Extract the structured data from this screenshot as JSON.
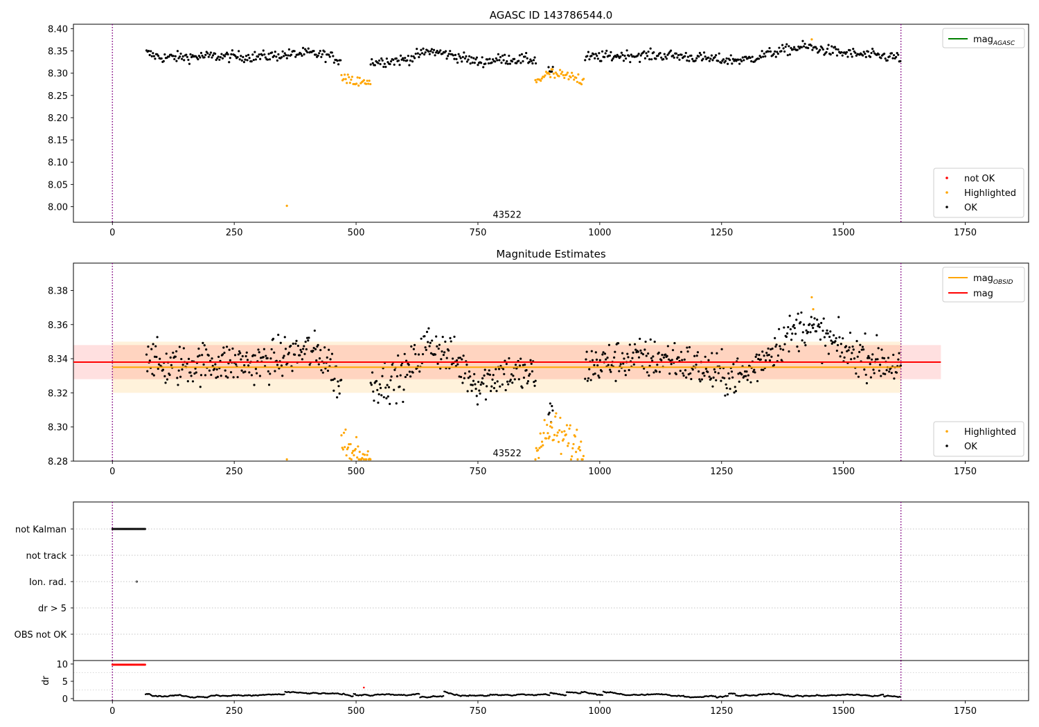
{
  "chart_data": [
    {
      "id": "top",
      "type": "scatter",
      "title": "AGASC ID 143786544.0",
      "xlim": [
        -80,
        1880
      ],
      "ylim": [
        7.965,
        8.41
      ],
      "xticks": [
        "0",
        "250",
        "500",
        "750",
        "1000",
        "1250",
        "1500",
        "1750"
      ],
      "xtick_values": [
        0,
        250,
        500,
        750,
        1000,
        1250,
        1500,
        1750
      ],
      "yticks": [
        "8.00",
        "8.05",
        "8.10",
        "8.15",
        "8.20",
        "8.25",
        "8.30",
        "8.35",
        "8.40"
      ],
      "ytick_values": [
        8.0,
        8.05,
        8.1,
        8.15,
        8.2,
        8.25,
        8.3,
        8.35,
        8.4
      ],
      "vlines": [
        0,
        1618
      ],
      "annotation": {
        "text": "43522",
        "x": 810,
        "y": 7.98
      },
      "hlines": [
        {
          "name": "mag_AGASC",
          "value": null,
          "color": "#008000"
        }
      ],
      "legend_lines": [
        {
          "label": "mag",
          "subscript": "AGASC",
          "color": "#008000"
        }
      ],
      "legend_points": [
        {
          "label": "not OK",
          "color": "#ff0000"
        },
        {
          "label": "Highlighted",
          "color": "#ffa500"
        },
        {
          "label": "OK",
          "color": "#000000"
        }
      ],
      "series": [
        {
          "name": "OK",
          "color": "#000000",
          "x_range": [
            70,
            1618
          ],
          "segments": [
            [
              70,
              470
            ],
            [
              530,
              870
            ],
            [
              895,
              905
            ],
            [
              970,
              1618
            ]
          ],
          "trend": [
            [
              70,
              8.345
            ],
            [
              100,
              8.335
            ],
            [
              200,
              8.338
            ],
            [
              300,
              8.337
            ],
            [
              400,
              8.345
            ],
            [
              440,
              8.34
            ],
            [
              465,
              8.33
            ],
            [
              530,
              8.325
            ],
            [
              600,
              8.33
            ],
            [
              650,
              8.35
            ],
            [
              700,
              8.34
            ],
            [
              750,
              8.325
            ],
            [
              800,
              8.332
            ],
            [
              870,
              8.33
            ],
            [
              900,
              8.305
            ],
            [
              970,
              8.335
            ],
            [
              1050,
              8.34
            ],
            [
              1150,
              8.34
            ],
            [
              1250,
              8.33
            ],
            [
              1300,
              8.33
            ],
            [
              1350,
              8.345
            ],
            [
              1420,
              8.36
            ],
            [
              1500,
              8.345
            ],
            [
              1618,
              8.335
            ]
          ],
          "noise": 0.006
        },
        {
          "name": "Highlighted",
          "color": "#ffa500",
          "segments": [
            [
              470,
              530
            ],
            [
              868,
              968
            ]
          ],
          "trend": [
            [
              470,
              8.285
            ],
            [
              500,
              8.28
            ],
            [
              530,
              8.275
            ],
            [
              868,
              8.285
            ],
            [
              900,
              8.298
            ],
            [
              968,
              8.285
            ]
          ],
          "noise": 0.007,
          "extra_points": [
            [
              358,
              8.002
            ],
            [
              1435,
              8.376
            ]
          ]
        }
      ]
    },
    {
      "id": "middle",
      "type": "scatter",
      "title": "Magnitude Estimates",
      "xlim": [
        -80,
        1880
      ],
      "ylim": [
        8.28,
        8.396
      ],
      "xticks": [
        "0",
        "250",
        "500",
        "750",
        "1000",
        "1250",
        "1500",
        "1750"
      ],
      "xtick_values": [
        0,
        250,
        500,
        750,
        1000,
        1250,
        1500,
        1750
      ],
      "yticks": [
        "8.28",
        "8.30",
        "8.32",
        "8.34",
        "8.36",
        "8.38"
      ],
      "ytick_values": [
        8.28,
        8.3,
        8.32,
        8.34,
        8.36,
        8.38
      ],
      "vlines": [
        0,
        1618
      ],
      "annotation": {
        "text": "43522",
        "x": 810,
        "y": 8.284
      },
      "hlines": [
        {
          "name": "mag_OBSID",
          "value": 8.335,
          "color": "#ffa500",
          "band": [
            8.32,
            8.35
          ],
          "band_x": [
            0,
            1618
          ],
          "band_color": "#ffa500",
          "band_opacity": 0.14
        },
        {
          "name": "mag",
          "value": 8.338,
          "color": "#ff0000",
          "band": [
            8.328,
            8.348
          ],
          "band_x": [
            -80,
            1700
          ],
          "band_color": "#ff0000",
          "band_opacity": 0.12
        }
      ],
      "legend_lines": [
        {
          "label": "mag",
          "subscript": "OBSID",
          "color": "#ffa500"
        },
        {
          "label": "mag",
          "subscript": "",
          "color": "#ff0000"
        }
      ],
      "legend_points": [
        {
          "label": "Highlighted",
          "color": "#ffa500"
        },
        {
          "label": "OK",
          "color": "#000000"
        }
      ],
      "series": [
        {
          "name": "OK",
          "color": "#000000",
          "segments": [
            [
              70,
              470
            ],
            [
              530,
              870
            ],
            [
              895,
              905
            ],
            [
              970,
              1618
            ]
          ],
          "trend": [
            [
              70,
              8.345
            ],
            [
              100,
              8.335
            ],
            [
              200,
              8.338
            ],
            [
              300,
              8.337
            ],
            [
              400,
              8.345
            ],
            [
              440,
              8.34
            ],
            [
              465,
              8.325
            ],
            [
              530,
              8.325
            ],
            [
              600,
              8.33
            ],
            [
              650,
              8.35
            ],
            [
              700,
              8.34
            ],
            [
              750,
              8.325
            ],
            [
              800,
              8.332
            ],
            [
              870,
              8.33
            ],
            [
              900,
              8.305
            ],
            [
              970,
              8.335
            ],
            [
              1050,
              8.34
            ],
            [
              1150,
              8.34
            ],
            [
              1250,
              8.33
            ],
            [
              1300,
              8.33
            ],
            [
              1350,
              8.345
            ],
            [
              1420,
              8.36
            ],
            [
              1500,
              8.345
            ],
            [
              1618,
              8.335
            ]
          ],
          "noise": 0.006
        },
        {
          "name": "Highlighted",
          "color": "#ffa500",
          "segments": [
            [
              470,
              530
            ],
            [
              868,
              968
            ]
          ],
          "trend": [
            [
              470,
              8.287
            ],
            [
              500,
              8.284
            ],
            [
              530,
              8.282
            ],
            [
              868,
              8.287
            ],
            [
              900,
              8.298
            ],
            [
              968,
              8.286
            ]
          ],
          "noise": 0.006,
          "clip_min": 8.281,
          "extra_points": [
            [
              358,
              8.281
            ],
            [
              1435,
              8.376
            ],
            [
              1438,
              8.369
            ]
          ]
        }
      ]
    },
    {
      "id": "flags",
      "type": "scatter",
      "xlim": [
        -80,
        1880
      ],
      "ytick_labels": [
        "not Kalman",
        "not track",
        "Ion. rad.",
        "dr > 5",
        "OBS not OK"
      ],
      "vlines": [
        0,
        1618
      ],
      "flag_points": [
        {
          "row": "not Kalman",
          "x_start": 0,
          "x_end": 68,
          "color": "#000000"
        },
        {
          "row": "Ion. rad.",
          "x_start": 50,
          "x_end": 50,
          "color": "#000000"
        }
      ]
    },
    {
      "id": "dr",
      "type": "scatter",
      "xlim": [
        -80,
        1880
      ],
      "ylim": [
        -0.6,
        11
      ],
      "ylabel": "dr",
      "xticks": [
        "0",
        "250",
        "500",
        "750",
        "1000",
        "1250",
        "1500",
        "1750"
      ],
      "xtick_values": [
        0,
        250,
        500,
        750,
        1000,
        1250,
        1500,
        1750
      ],
      "yticks": [
        "0",
        "5",
        "10"
      ],
      "ytick_values": [
        0,
        5,
        10
      ],
      "vlines": [
        0,
        1618
      ],
      "series": [
        {
          "name": "not OK",
          "color": "#ff0000",
          "x_range": [
            0,
            68
          ],
          "value": 9.8
        },
        {
          "name": "OK",
          "color": "#000000",
          "x_range": [
            68,
            1618
          ],
          "base": 1.0,
          "noise": 0.6
        },
        {
          "name": "outlier",
          "color": "#ff0000",
          "points": [
            [
              516,
              3.2
            ]
          ]
        }
      ]
    }
  ]
}
